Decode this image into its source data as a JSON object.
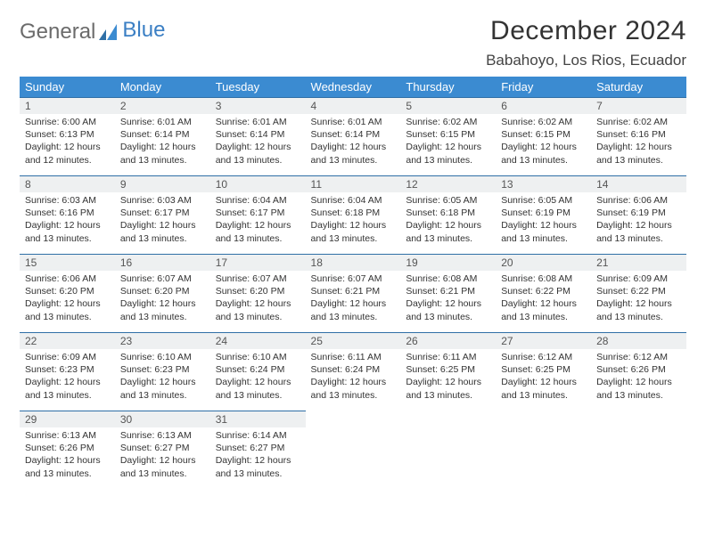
{
  "brand": {
    "part1": "General",
    "part2": "Blue"
  },
  "title": "December 2024",
  "location": "Babahoyo, Los Rios, Ecuador",
  "colors": {
    "header_bg": "#3b8bd1",
    "header_text": "#ffffff",
    "daynum_bg": "#eef0f1",
    "daynum_border": "#2f6fa6",
    "brand_gray": "#6b6b6b",
    "brand_blue": "#3b7fc4"
  },
  "weekdays": [
    "Sunday",
    "Monday",
    "Tuesday",
    "Wednesday",
    "Thursday",
    "Friday",
    "Saturday"
  ],
  "weeks": [
    [
      {
        "n": "1",
        "sr": "6:00 AM",
        "ss": "6:13 PM",
        "dl": "12 hours and 12 minutes."
      },
      {
        "n": "2",
        "sr": "6:01 AM",
        "ss": "6:14 PM",
        "dl": "12 hours and 13 minutes."
      },
      {
        "n": "3",
        "sr": "6:01 AM",
        "ss": "6:14 PM",
        "dl": "12 hours and 13 minutes."
      },
      {
        "n": "4",
        "sr": "6:01 AM",
        "ss": "6:14 PM",
        "dl": "12 hours and 13 minutes."
      },
      {
        "n": "5",
        "sr": "6:02 AM",
        "ss": "6:15 PM",
        "dl": "12 hours and 13 minutes."
      },
      {
        "n": "6",
        "sr": "6:02 AM",
        "ss": "6:15 PM",
        "dl": "12 hours and 13 minutes."
      },
      {
        "n": "7",
        "sr": "6:02 AM",
        "ss": "6:16 PM",
        "dl": "12 hours and 13 minutes."
      }
    ],
    [
      {
        "n": "8",
        "sr": "6:03 AM",
        "ss": "6:16 PM",
        "dl": "12 hours and 13 minutes."
      },
      {
        "n": "9",
        "sr": "6:03 AM",
        "ss": "6:17 PM",
        "dl": "12 hours and 13 minutes."
      },
      {
        "n": "10",
        "sr": "6:04 AM",
        "ss": "6:17 PM",
        "dl": "12 hours and 13 minutes."
      },
      {
        "n": "11",
        "sr": "6:04 AM",
        "ss": "6:18 PM",
        "dl": "12 hours and 13 minutes."
      },
      {
        "n": "12",
        "sr": "6:05 AM",
        "ss": "6:18 PM",
        "dl": "12 hours and 13 minutes."
      },
      {
        "n": "13",
        "sr": "6:05 AM",
        "ss": "6:19 PM",
        "dl": "12 hours and 13 minutes."
      },
      {
        "n": "14",
        "sr": "6:06 AM",
        "ss": "6:19 PM",
        "dl": "12 hours and 13 minutes."
      }
    ],
    [
      {
        "n": "15",
        "sr": "6:06 AM",
        "ss": "6:20 PM",
        "dl": "12 hours and 13 minutes."
      },
      {
        "n": "16",
        "sr": "6:07 AM",
        "ss": "6:20 PM",
        "dl": "12 hours and 13 minutes."
      },
      {
        "n": "17",
        "sr": "6:07 AM",
        "ss": "6:20 PM",
        "dl": "12 hours and 13 minutes."
      },
      {
        "n": "18",
        "sr": "6:07 AM",
        "ss": "6:21 PM",
        "dl": "12 hours and 13 minutes."
      },
      {
        "n": "19",
        "sr": "6:08 AM",
        "ss": "6:21 PM",
        "dl": "12 hours and 13 minutes."
      },
      {
        "n": "20",
        "sr": "6:08 AM",
        "ss": "6:22 PM",
        "dl": "12 hours and 13 minutes."
      },
      {
        "n": "21",
        "sr": "6:09 AM",
        "ss": "6:22 PM",
        "dl": "12 hours and 13 minutes."
      }
    ],
    [
      {
        "n": "22",
        "sr": "6:09 AM",
        "ss": "6:23 PM",
        "dl": "12 hours and 13 minutes."
      },
      {
        "n": "23",
        "sr": "6:10 AM",
        "ss": "6:23 PM",
        "dl": "12 hours and 13 minutes."
      },
      {
        "n": "24",
        "sr": "6:10 AM",
        "ss": "6:24 PM",
        "dl": "12 hours and 13 minutes."
      },
      {
        "n": "25",
        "sr": "6:11 AM",
        "ss": "6:24 PM",
        "dl": "12 hours and 13 minutes."
      },
      {
        "n": "26",
        "sr": "6:11 AM",
        "ss": "6:25 PM",
        "dl": "12 hours and 13 minutes."
      },
      {
        "n": "27",
        "sr": "6:12 AM",
        "ss": "6:25 PM",
        "dl": "12 hours and 13 minutes."
      },
      {
        "n": "28",
        "sr": "6:12 AM",
        "ss": "6:26 PM",
        "dl": "12 hours and 13 minutes."
      }
    ],
    [
      {
        "n": "29",
        "sr": "6:13 AM",
        "ss": "6:26 PM",
        "dl": "12 hours and 13 minutes."
      },
      {
        "n": "30",
        "sr": "6:13 AM",
        "ss": "6:27 PM",
        "dl": "12 hours and 13 minutes."
      },
      {
        "n": "31",
        "sr": "6:14 AM",
        "ss": "6:27 PM",
        "dl": "12 hours and 13 minutes."
      },
      null,
      null,
      null,
      null
    ]
  ],
  "labels": {
    "sunrise": "Sunrise: ",
    "sunset": "Sunset: ",
    "daylight": "Daylight: "
  }
}
